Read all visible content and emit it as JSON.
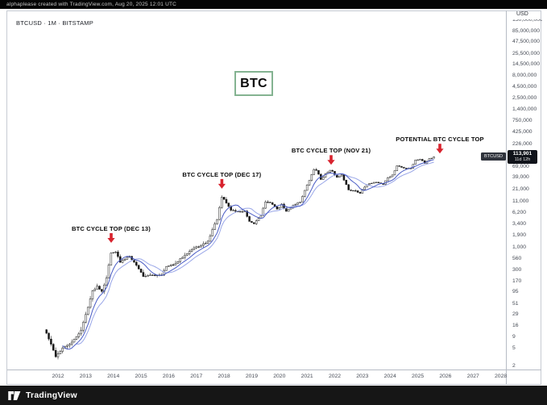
{
  "meta": {
    "attribution": "alphaplease created with TradingView.com, Aug 20, 2025 12:01 UTC",
    "brand": "TradingView"
  },
  "header": {
    "symbol_info": "BTCUSD · 1M · BITSTAMP"
  },
  "price_axis": {
    "currency_label": "USD"
  },
  "last_price_badge": {
    "symbol": "BTCUSD",
    "price": "113,901",
    "countdown": "11d 12h"
  },
  "overlay": {
    "btc_box_label": "BTC"
  },
  "colors": {
    "accent_red": "#d8232e",
    "ma_fast": "#4a5cc5",
    "ma_slow": "#9aa7e8",
    "candle_up": "#ffffff",
    "candle_down": "#161616",
    "candle_outline": "#1c1c1c",
    "badge_bg": "#10131a",
    "btc_box_border": "#84b391"
  },
  "chart_data": {
    "type": "candlestick",
    "title": "BTCUSD 1M BITSTAMP",
    "scale": "log",
    "x_range": [
      2011.5,
      2028.6
    ],
    "grid": "off",
    "last_price": 113901,
    "countdown": "11d 12h",
    "y_ticks": [
      {
        "value": 150000000,
        "label": "150,000,000",
        "clipped": true
      },
      {
        "value": 85000000,
        "label": "85,000,000"
      },
      {
        "value": 47500000,
        "label": "47,500,000"
      },
      {
        "value": 25500000,
        "label": "25,500,000"
      },
      {
        "value": 14500000,
        "label": "14,500,000"
      },
      {
        "value": 8000000,
        "label": "8,000,000"
      },
      {
        "value": 4500000,
        "label": "4,500,000"
      },
      {
        "value": 2500000,
        "label": "2,500,000"
      },
      {
        "value": 1400000,
        "label": "1,400,000"
      },
      {
        "value": 750000,
        "label": "750,000"
      },
      {
        "value": 425000,
        "label": "425,000"
      },
      {
        "value": 226000,
        "label": "226,000"
      },
      {
        "value": 69000,
        "label": "69,000"
      },
      {
        "value": 39000,
        "label": "39,000"
      },
      {
        "value": 21000,
        "label": "21,000"
      },
      {
        "value": 11000,
        "label": "11,000"
      },
      {
        "value": 6200,
        "label": "6,200"
      },
      {
        "value": 3400,
        "label": "3,400"
      },
      {
        "value": 1900,
        "label": "1,900"
      },
      {
        "value": 1000,
        "label": "1,000"
      },
      {
        "value": 560,
        "label": "560"
      },
      {
        "value": 300,
        "label": "300"
      },
      {
        "value": 170,
        "label": "170"
      },
      {
        "value": 95,
        "label": "95"
      },
      {
        "value": 51,
        "label": "51"
      },
      {
        "value": 29,
        "label": "29"
      },
      {
        "value": 16,
        "label": "16"
      },
      {
        "value": 9,
        "label": "9"
      },
      {
        "value": 5,
        "label": "5"
      },
      {
        "value": 2,
        "label": "2"
      }
    ],
    "x_years": [
      "2012",
      "2013",
      "2014",
      "2015",
      "2016",
      "2017",
      "2018",
      "2019",
      "2020",
      "2021",
      "2022",
      "2023",
      "2024",
      "2025",
      "2026",
      "2027",
      "2028"
    ],
    "annotations": [
      {
        "label": "BTC CYCLE TOP (DEC 13)",
        "t": 2013.92,
        "price": 1150
      },
      {
        "label": "BTC CYCLE TOP (DEC 17)",
        "t": 2017.92,
        "price": 19700
      },
      {
        "label": "BTC CYCLE TOP (NOV 21)",
        "t": 2021.87,
        "price": 69000
      },
      {
        "label": "POTENTIAL BTC CYCLE TOP",
        "t": 2025.8,
        "price": 125000
      }
    ],
    "key_points": [
      [
        2011.58,
        11
      ],
      [
        2011.75,
        6
      ],
      [
        2011.92,
        3.2
      ],
      [
        2012.17,
        5
      ],
      [
        2012.5,
        6.7
      ],
      [
        2012.83,
        12.5
      ],
      [
        2013.25,
        100
      ],
      [
        2013.42,
        129
      ],
      [
        2013.58,
        98
      ],
      [
        2013.75,
        200
      ],
      [
        2013.92,
        750
      ],
      [
        2014.08,
        800
      ],
      [
        2014.25,
        450
      ],
      [
        2014.58,
        640
      ],
      [
        2014.92,
        320
      ],
      [
        2015.08,
        217
      ],
      [
        2015.42,
        230
      ],
      [
        2015.75,
        236
      ],
      [
        2015.92,
        360
      ],
      [
        2016.25,
        416
      ],
      [
        2016.58,
        670
      ],
      [
        2016.92,
        960
      ],
      [
        2017.17,
        1080
      ],
      [
        2017.42,
        1350
      ],
      [
        2017.58,
        2500
      ],
      [
        2017.75,
        4350
      ],
      [
        2017.92,
        14000
      ],
      [
        2018.08,
        10200
      ],
      [
        2018.25,
        7000
      ],
      [
        2018.5,
        6400
      ],
      [
        2018.75,
        6500
      ],
      [
        2018.92,
        3700
      ],
      [
        2019.08,
        3400
      ],
      [
        2019.33,
        5300
      ],
      [
        2019.5,
        10800
      ],
      [
        2019.75,
        9600
      ],
      [
        2019.92,
        7200
      ],
      [
        2020.08,
        9350
      ],
      [
        2020.25,
        6450
      ],
      [
        2020.5,
        9150
      ],
      [
        2020.75,
        10800
      ],
      [
        2020.92,
        19700
      ],
      [
        2021.08,
        33100
      ],
      [
        2021.25,
        58800
      ],
      [
        2021.33,
        57800
      ],
      [
        2021.5,
        35000
      ],
      [
        2021.67,
        47100
      ],
      [
        2021.87,
        57000
      ],
      [
        2022.08,
        38500
      ],
      [
        2022.25,
        45500
      ],
      [
        2022.5,
        19900
      ],
      [
        2022.75,
        19400
      ],
      [
        2022.92,
        17100
      ],
      [
        2023.08,
        23100
      ],
      [
        2023.25,
        28500
      ],
      [
        2023.5,
        30500
      ],
      [
        2023.75,
        27000
      ],
      [
        2023.92,
        38700
      ],
      [
        2024.08,
        42600
      ],
      [
        2024.25,
        71300
      ],
      [
        2024.5,
        62700
      ],
      [
        2024.75,
        63300
      ],
      [
        2024.92,
        96400
      ],
      [
        2025.08,
        102400
      ],
      [
        2025.25,
        82500
      ],
      [
        2025.42,
        104600
      ],
      [
        2025.58,
        113901
      ]
    ]
  }
}
